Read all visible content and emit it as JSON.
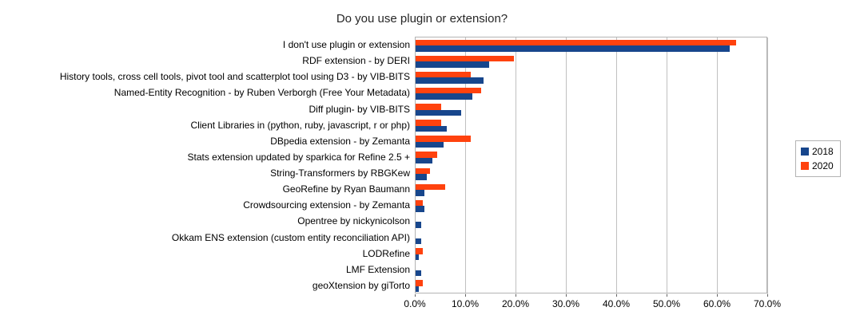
{
  "chart_data": {
    "type": "bar",
    "orientation": "horizontal",
    "title": "Do you use plugin or extension?",
    "categories": [
      "I don't use plugin or extension",
      "RDF extension - by DERI",
      "History tools, cross cell tools, pivot tool and scatterplot tool using D3 - by VIB-BITS",
      "Named-Entity Recognition - by Ruben Verborgh (Free Your Metadata)",
      "Diff plugin- by VIB-BITS",
      "Client Libraries in (python, ruby, javascript, r or php)",
      "DBpedia extension - by Zemanta",
      "Stats extension updated by sparkica for Refine 2.5 +",
      "String-Transformers by RBGKew",
      "GeoRefine by Ryan Baumann",
      "Crowdsourcing extension - by Zemanta",
      "Opentree by nickynicolson",
      "Okkam ENS extension (custom entity reconciliation API)",
      "LODRefine",
      "LMF Extension",
      "geoXtension by giTorto"
    ],
    "series": [
      {
        "name": "2018",
        "color": "#17468c",
        "values": [
          62.4,
          14.6,
          13.5,
          11.2,
          9.0,
          6.2,
          5.6,
          3.4,
          2.2,
          1.7,
          1.7,
          1.1,
          1.1,
          0.6,
          1.1,
          0.6
        ]
      },
      {
        "name": "2020",
        "color": "#ff420e",
        "values": [
          63.6,
          19.6,
          10.9,
          13.0,
          5.1,
          5.1,
          10.9,
          4.3,
          2.9,
          5.8,
          1.4,
          0.0,
          0.0,
          1.4,
          0.0,
          1.4
        ]
      }
    ],
    "xlim": [
      0,
      70
    ],
    "x_ticks": [
      "0.0%",
      "10.0%",
      "20.0%",
      "30.0%",
      "40.0%",
      "50.0%",
      "60.0%",
      "70.0%"
    ],
    "grid": true,
    "legend_position": "right"
  }
}
